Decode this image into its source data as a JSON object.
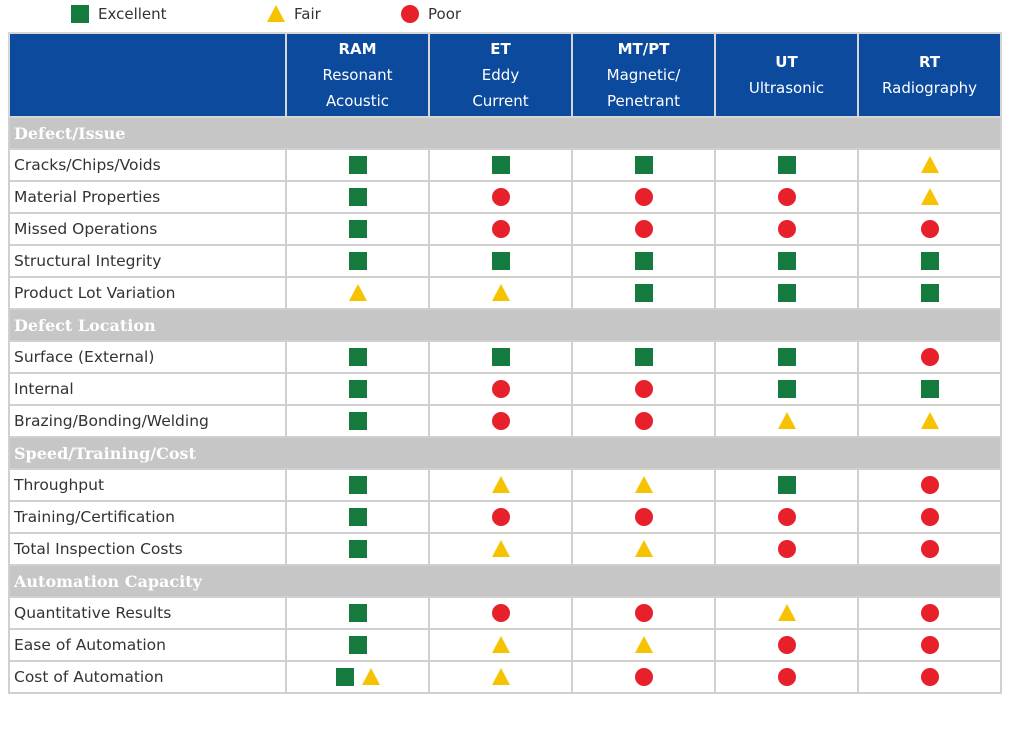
{
  "legend": [
    "Excellent",
    "Fair",
    "Poor"
  ],
  "table": {
    "columns": [
      {
        "code": "RAM",
        "lines": [
          "Resonant",
          "Acoustic"
        ]
      },
      {
        "code": "ET",
        "lines": [
          "Eddy",
          "Current"
        ]
      },
      {
        "code": "MT/PT",
        "lines": [
          "Magnetic/",
          "Penetrant"
        ]
      },
      {
        "code": "UT",
        "lines": [
          "Ultrasonic"
        ]
      },
      {
        "code": "RT",
        "lines": [
          "Radiography"
        ]
      }
    ],
    "sections": [
      {
        "title": "Defect/Issue",
        "rows": [
          {
            "label": "Cracks/Chips/Voids",
            "ratings": [
              [
                "Excellent"
              ],
              [
                "Excellent"
              ],
              [
                "Excellent"
              ],
              [
                "Excellent"
              ],
              [
                "Fair"
              ]
            ]
          },
          {
            "label": "Material Properties",
            "ratings": [
              [
                "Excellent"
              ],
              [
                "Poor"
              ],
              [
                "Poor"
              ],
              [
                "Poor"
              ],
              [
                "Fair"
              ]
            ]
          },
          {
            "label": "Missed Operations",
            "ratings": [
              [
                "Excellent"
              ],
              [
                "Poor"
              ],
              [
                "Poor"
              ],
              [
                "Poor"
              ],
              [
                "Poor"
              ]
            ]
          },
          {
            "label": "Structural Integrity",
            "ratings": [
              [
                "Excellent"
              ],
              [
                "Excellent"
              ],
              [
                "Excellent"
              ],
              [
                "Excellent"
              ],
              [
                "Excellent"
              ]
            ]
          },
          {
            "label": "Product Lot Variation",
            "ratings": [
              [
                "Fair"
              ],
              [
                "Fair"
              ],
              [
                "Excellent"
              ],
              [
                "Excellent"
              ],
              [
                "Excellent"
              ]
            ]
          }
        ]
      },
      {
        "title": "Defect Location",
        "rows": [
          {
            "label": "Surface (External)",
            "ratings": [
              [
                "Excellent"
              ],
              [
                "Excellent"
              ],
              [
                "Excellent"
              ],
              [
                "Excellent"
              ],
              [
                "Poor"
              ]
            ]
          },
          {
            "label": "Internal",
            "ratings": [
              [
                "Excellent"
              ],
              [
                "Poor"
              ],
              [
                "Poor"
              ],
              [
                "Excellent"
              ],
              [
                "Excellent"
              ]
            ]
          },
          {
            "label": "Brazing/Bonding/Welding",
            "ratings": [
              [
                "Excellent"
              ],
              [
                "Poor"
              ],
              [
                "Poor"
              ],
              [
                "Fair"
              ],
              [
                "Fair"
              ]
            ]
          }
        ]
      },
      {
        "title": "Speed/Training/Cost",
        "rows": [
          {
            "label": "Throughput",
            "ratings": [
              [
                "Excellent"
              ],
              [
                "Fair"
              ],
              [
                "Fair"
              ],
              [
                "Excellent"
              ],
              [
                "Poor"
              ]
            ]
          },
          {
            "label": "Training/Certification",
            "ratings": [
              [
                "Excellent"
              ],
              [
                "Poor"
              ],
              [
                "Poor"
              ],
              [
                "Poor"
              ],
              [
                "Poor"
              ]
            ]
          },
          {
            "label": "Total Inspection Costs",
            "ratings": [
              [
                "Excellent"
              ],
              [
                "Fair"
              ],
              [
                "Fair"
              ],
              [
                "Poor"
              ],
              [
                "Poor"
              ]
            ]
          }
        ]
      },
      {
        "title": "Automation Capacity",
        "rows": [
          {
            "label": "Quantitative Results",
            "ratings": [
              [
                "Excellent"
              ],
              [
                "Poor"
              ],
              [
                "Poor"
              ],
              [
                "Fair"
              ],
              [
                "Poor"
              ]
            ]
          },
          {
            "label": "Ease of Automation",
            "ratings": [
              [
                "Excellent"
              ],
              [
                "Fair"
              ],
              [
                "Fair"
              ],
              [
                "Poor"
              ],
              [
                "Poor"
              ]
            ]
          },
          {
            "label": "Cost of Automation",
            "ratings": [
              [
                "Excellent",
                "Fair"
              ],
              [
                "Fair"
              ],
              [
                "Poor"
              ],
              [
                "Poor"
              ],
              [
                "Poor"
              ]
            ]
          }
        ]
      }
    ]
  }
}
